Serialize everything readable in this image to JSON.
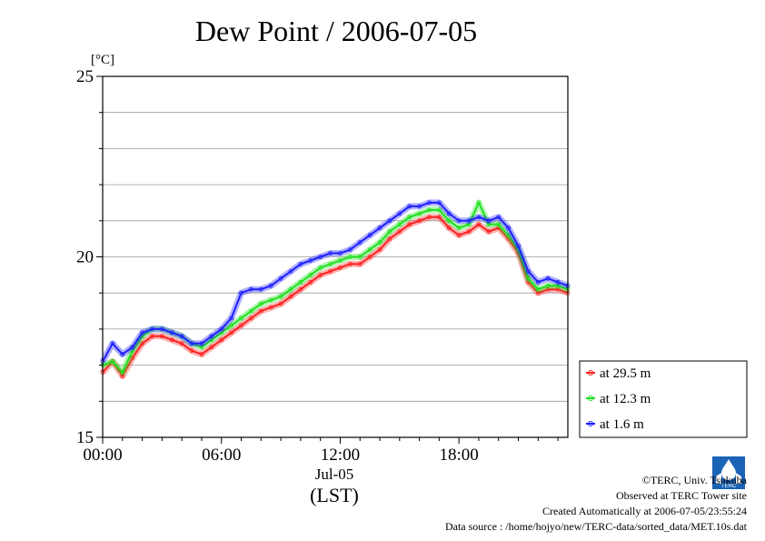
{
  "chart_data": {
    "type": "line",
    "title": "Dew Point / 2006-07-05",
    "ylabel": "[°C]",
    "xlabel": "(LST)",
    "date_label": "Jul-05",
    "x_ticks": [
      "00:00",
      "06:00",
      "12:00",
      "18:00"
    ],
    "y_ticks": [
      "15",
      "20",
      "25"
    ],
    "xlim_hours": [
      0,
      23.5
    ],
    "ylim": [
      15,
      25
    ],
    "grid": "horizontal",
    "legend_position": "right-bottom",
    "x_hours": [
      0.0,
      0.5,
      1.0,
      1.5,
      2.0,
      2.5,
      3.0,
      3.5,
      4.0,
      4.5,
      5.0,
      5.5,
      6.0,
      6.5,
      7.0,
      7.5,
      8.0,
      8.5,
      9.0,
      9.5,
      10.0,
      10.5,
      11.0,
      11.5,
      12.0,
      12.5,
      13.0,
      13.5,
      14.0,
      14.5,
      15.0,
      15.5,
      16.0,
      16.5,
      17.0,
      17.5,
      18.0,
      18.5,
      19.0,
      19.5,
      20.0,
      20.5,
      21.0,
      21.5,
      22.0,
      22.5,
      23.0,
      23.5
    ],
    "series": [
      {
        "name": "at 29.5 m",
        "color": "#ff2020",
        "values": [
          16.8,
          17.1,
          16.7,
          17.2,
          17.6,
          17.8,
          17.8,
          17.7,
          17.6,
          17.4,
          17.3,
          17.5,
          17.7,
          17.9,
          18.1,
          18.3,
          18.5,
          18.6,
          18.7,
          18.9,
          19.1,
          19.3,
          19.5,
          19.6,
          19.7,
          19.8,
          19.8,
          20.0,
          20.2,
          20.5,
          20.7,
          20.9,
          21.0,
          21.1,
          21.1,
          20.8,
          20.6,
          20.7,
          20.9,
          20.7,
          20.8,
          20.5,
          20.1,
          19.3,
          19.0,
          19.1,
          19.1,
          19.0
        ]
      },
      {
        "name": "at 12.3 m",
        "color": "#20e020",
        "values": [
          17.0,
          17.1,
          16.8,
          17.4,
          17.8,
          18.0,
          18.0,
          17.9,
          17.8,
          17.6,
          17.5,
          17.7,
          17.9,
          18.1,
          18.3,
          18.5,
          18.7,
          18.8,
          18.9,
          19.1,
          19.3,
          19.5,
          19.7,
          19.8,
          19.9,
          20.0,
          20.0,
          20.2,
          20.4,
          20.7,
          20.9,
          21.1,
          21.2,
          21.3,
          21.3,
          21.0,
          20.8,
          20.9,
          21.5,
          20.9,
          20.9,
          20.6,
          20.2,
          19.4,
          19.1,
          19.2,
          19.2,
          19.1
        ]
      },
      {
        "name": "at 1.6 m",
        "color": "#2020ff",
        "values": [
          17.1,
          17.6,
          17.3,
          17.5,
          17.9,
          18.0,
          18.0,
          17.9,
          17.8,
          17.6,
          17.6,
          17.8,
          18.0,
          18.3,
          19.0,
          19.1,
          19.1,
          19.2,
          19.4,
          19.6,
          19.8,
          19.9,
          20.0,
          20.1,
          20.1,
          20.2,
          20.4,
          20.6,
          20.8,
          21.0,
          21.2,
          21.4,
          21.4,
          21.5,
          21.5,
          21.2,
          21.0,
          21.0,
          21.1,
          21.0,
          21.1,
          20.8,
          20.3,
          19.6,
          19.3,
          19.4,
          19.3,
          19.2
        ]
      }
    ]
  },
  "footer": {
    "copyright": "©TERC, Univ. Tsukuba",
    "observed": "Observed at TERC Tower site",
    "created": "Created Automatically at 2006-07-05/23:55:24",
    "source": "Data source : /home/hojyo/new/TERC-data/sorted_data/MET.10s.dat"
  },
  "logo_text": "TERC",
  "colors": {
    "frame": "#000000",
    "grid": "#999999",
    "logo": "#1a63b5"
  }
}
